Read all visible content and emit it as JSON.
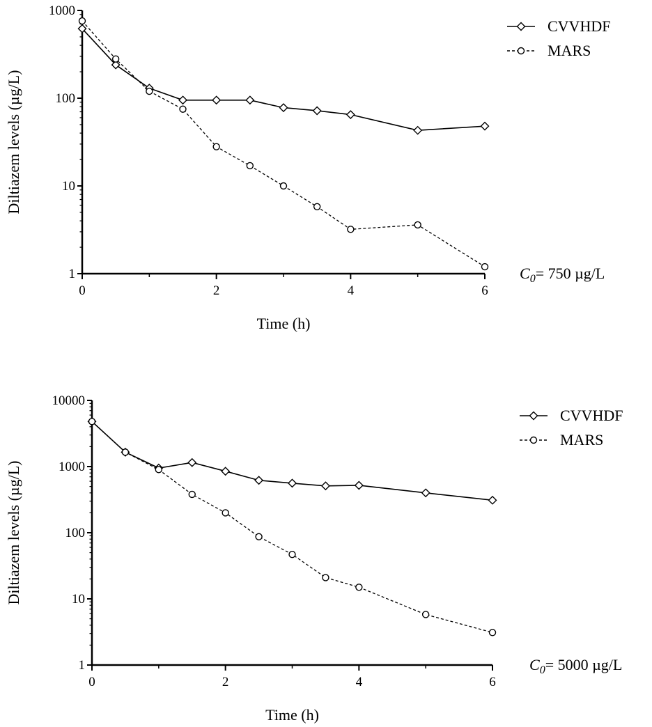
{
  "chart_data": [
    {
      "type": "line",
      "xlabel": "Time (h)",
      "ylabel": "Diltiazem levels (µg/L)",
      "yscale": "log",
      "xlim": [
        0,
        6
      ],
      "ylim": [
        1,
        1000
      ],
      "x_ticks": [
        0,
        2,
        4,
        6
      ],
      "y_ticks": [
        1,
        10,
        100,
        1000
      ],
      "grid": false,
      "legend_position": "top-right",
      "condition_label": {
        "symbol": "C",
        "subscript": "0",
        "rest": "= 750 µg/L"
      },
      "series": [
        {
          "name": "CVVHDF",
          "marker": "diamond",
          "line_style": "solid",
          "x": [
            0,
            0.5,
            1,
            1.5,
            2,
            2.5,
            3,
            3.5,
            4,
            5,
            6
          ],
          "y": [
            620,
            240,
            130,
            95,
            95,
            95,
            78,
            72,
            65,
            43,
            48
          ]
        },
        {
          "name": "MARS",
          "marker": "circle",
          "line_style": "dashed",
          "x": [
            0,
            0.5,
            1,
            1.5,
            2,
            2.5,
            3,
            3.5,
            4,
            5,
            6
          ],
          "y": [
            760,
            280,
            120,
            75,
            28,
            17,
            10,
            5.8,
            3.2,
            3.6,
            1.2
          ]
        }
      ]
    },
    {
      "type": "line",
      "xlabel": "Time (h)",
      "ylabel": "Diltiazem levels (µg/L)",
      "yscale": "log",
      "xlim": [
        0,
        6
      ],
      "ylim": [
        1,
        10000
      ],
      "x_ticks": [
        0,
        2,
        4,
        6
      ],
      "y_ticks": [
        1,
        10,
        100,
        1000,
        10000
      ],
      "grid": false,
      "legend_position": "top-right",
      "condition_label": {
        "symbol": "C",
        "subscript": "0",
        "rest": "= 5000 µg/L"
      },
      "series": [
        {
          "name": "CVVHDF",
          "marker": "diamond",
          "line_style": "solid",
          "x": [
            0,
            0.5,
            1,
            1.5,
            2,
            2.5,
            3,
            3.5,
            4,
            5,
            6
          ],
          "y": [
            4800,
            1650,
            950,
            1150,
            850,
            620,
            560,
            510,
            520,
            400,
            310
          ]
        },
        {
          "name": "MARS",
          "marker": "circle",
          "line_style": "dashed",
          "x": [
            0,
            0.5,
            1,
            1.5,
            2,
            2.5,
            3,
            3.5,
            4,
            5,
            6
          ],
          "y": [
            4800,
            1650,
            900,
            380,
            200,
            87,
            47,
            21,
            15,
            5.8,
            3.1
          ]
        }
      ]
    }
  ]
}
